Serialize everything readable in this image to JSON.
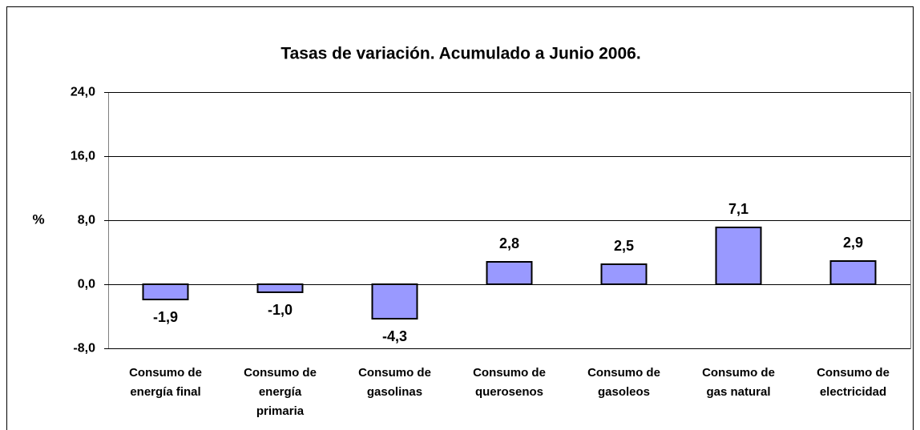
{
  "chart_data": {
    "type": "bar",
    "title": "Tasas de variación. Acumulado a Junio 2006.",
    "y_label": "%",
    "categories": [
      "Consumo de\nenergía final",
      "Consumo de\nenergía\nprimaria",
      "Consumo de\ngasolinas",
      "Consumo de\nquerosenos",
      "Consumo de\ngasoleos",
      "Consumo de\ngas natural",
      "Consumo de\nelectricidad"
    ],
    "values": [
      -1.9,
      -1.0,
      -4.3,
      2.8,
      2.5,
      7.1,
      2.9
    ],
    "value_labels": [
      "-1,9",
      "-1,0",
      "-4,3",
      "2,8",
      "2,5",
      "7,1",
      "2,9"
    ],
    "color": "#9999ff",
    "ylim": [
      -8,
      24
    ],
    "yticks": [
      {
        "value": -8,
        "label": "-8,0"
      },
      {
        "value": 0,
        "label": "0,0"
      },
      {
        "value": 8,
        "label": "8,0"
      },
      {
        "value": 16,
        "label": "16,0"
      },
      {
        "value": 24,
        "label": "24,0"
      }
    ],
    "grid": true
  }
}
